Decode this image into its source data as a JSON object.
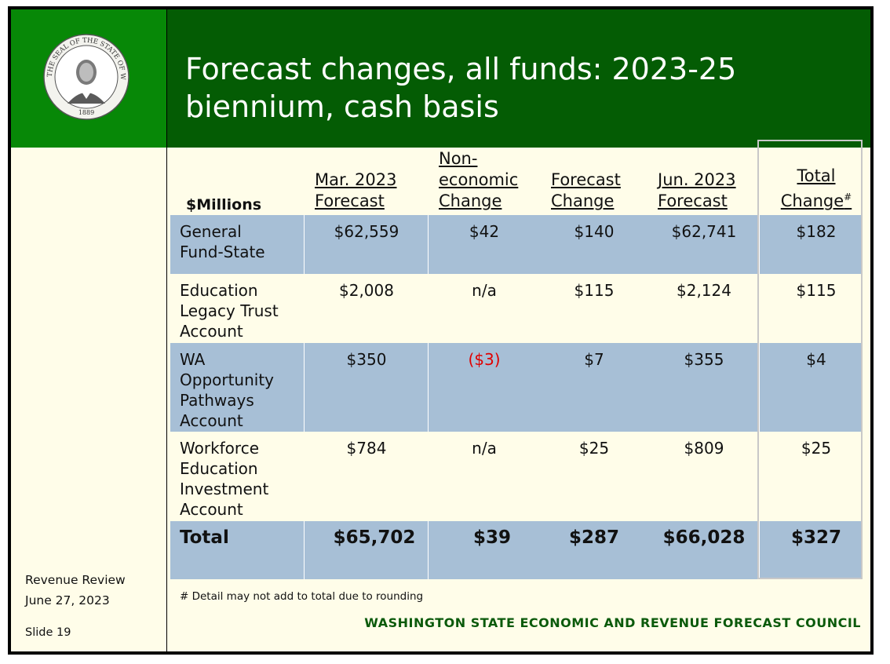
{
  "title_line1": "Forecast changes, all funds: 2023-25",
  "title_line2": "biennium, cash basis",
  "seal": {
    "text_top": "THE SEAL OF THE STATE OF WASHINGTON",
    "year": "1889"
  },
  "sidebar": {
    "review": "Revenue Review",
    "date": "June 27, 2023",
    "slide": "Slide 19"
  },
  "table": {
    "unit_label": "$Millions",
    "headers": [
      [
        "Mar. 2023",
        "Forecast"
      ],
      [
        "Non-",
        "economic",
        "Change"
      ],
      [
        "Forecast",
        "Change"
      ],
      [
        "Jun. 2023",
        "Forecast"
      ],
      [
        "Total",
        "Change"
      ]
    ],
    "total_change_mark": "#",
    "rows": [
      {
        "name": [
          "General",
          "Fund-State"
        ],
        "values": [
          "$62,559",
          "$42",
          "$140",
          "$62,741",
          "$182"
        ]
      },
      {
        "name": [
          "Education",
          "Legacy Trust",
          "Account"
        ],
        "values": [
          "$2,008",
          "n/a",
          "$115",
          "$2,124",
          "$115"
        ]
      },
      {
        "name": [
          "WA",
          "Opportunity",
          "Pathways",
          "Account"
        ],
        "values": [
          "$350",
          "($3)",
          "$7",
          "$355",
          "$4"
        ]
      },
      {
        "name": [
          "Workforce",
          "Education",
          "Investment",
          "Account"
        ],
        "values": [
          "$784",
          "n/a",
          "$25",
          "$809",
          "$25"
        ]
      }
    ],
    "total": {
      "name": "Total",
      "values": [
        "$65,702",
        "$39",
        "$287",
        "$66,028",
        "$327"
      ]
    }
  },
  "footnote": "# Detail may not add to total due to rounding",
  "council": "WASHINGTON STATE ECONOMIC AND REVENUE FORECAST COUNCIL",
  "colors": {
    "dark_green": "#045c04",
    "bright_green": "#078807",
    "row_blue": "#a7bfd6",
    "cream": "#fffde9",
    "negative": "#e00000"
  }
}
